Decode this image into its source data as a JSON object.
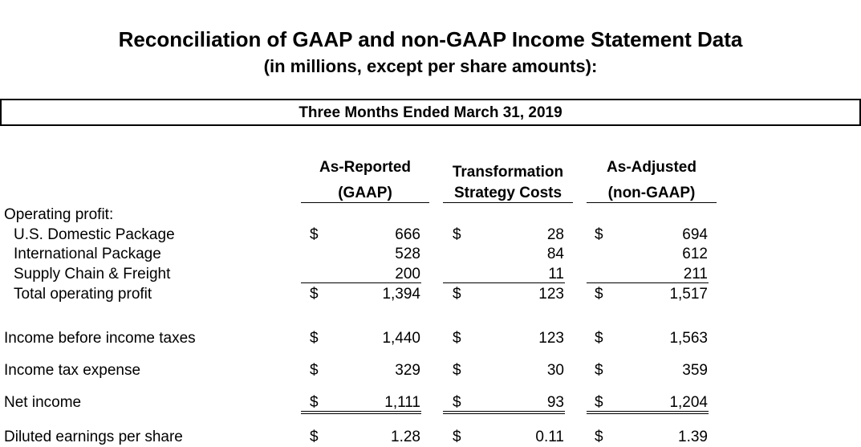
{
  "title": "Reconciliation of GAAP and non-GAAP Income Statement Data",
  "subtitle": "(in millions, except per share amounts):",
  "period": "Three Months Ended March 31, 2019",
  "columns": [
    {
      "line1": "As-Reported",
      "line2": "(GAAP)"
    },
    {
      "line1": "Transformation",
      "line2": "Strategy Costs"
    },
    {
      "line1": "As-Adjusted",
      "line2": "(non-GAAP)"
    }
  ],
  "currency_symbol": "$",
  "section_label": "Operating profit:",
  "rows": [
    {
      "label": "U.S. Domestic Package",
      "values": [
        "666",
        "28",
        "694"
      ]
    },
    {
      "label": "International Package",
      "values": [
        "528",
        "84",
        "612"
      ]
    },
    {
      "label": "Supply Chain & Freight",
      "values": [
        "200",
        "11",
        "211"
      ]
    },
    {
      "label": "Total operating profit",
      "values": [
        "1,394",
        "123",
        "1,517"
      ]
    },
    {
      "label": "Income before income taxes",
      "values": [
        "1,440",
        "123",
        "1,563"
      ]
    },
    {
      "label": "Income tax expense",
      "values": [
        "329",
        "30",
        "359"
      ]
    },
    {
      "label": "Net income",
      "values": [
        "1,111",
        "93",
        "1,204"
      ]
    },
    {
      "label": "Diluted earnings per share",
      "values": [
        "1.28",
        "0.11",
        "1.39"
      ]
    }
  ]
}
